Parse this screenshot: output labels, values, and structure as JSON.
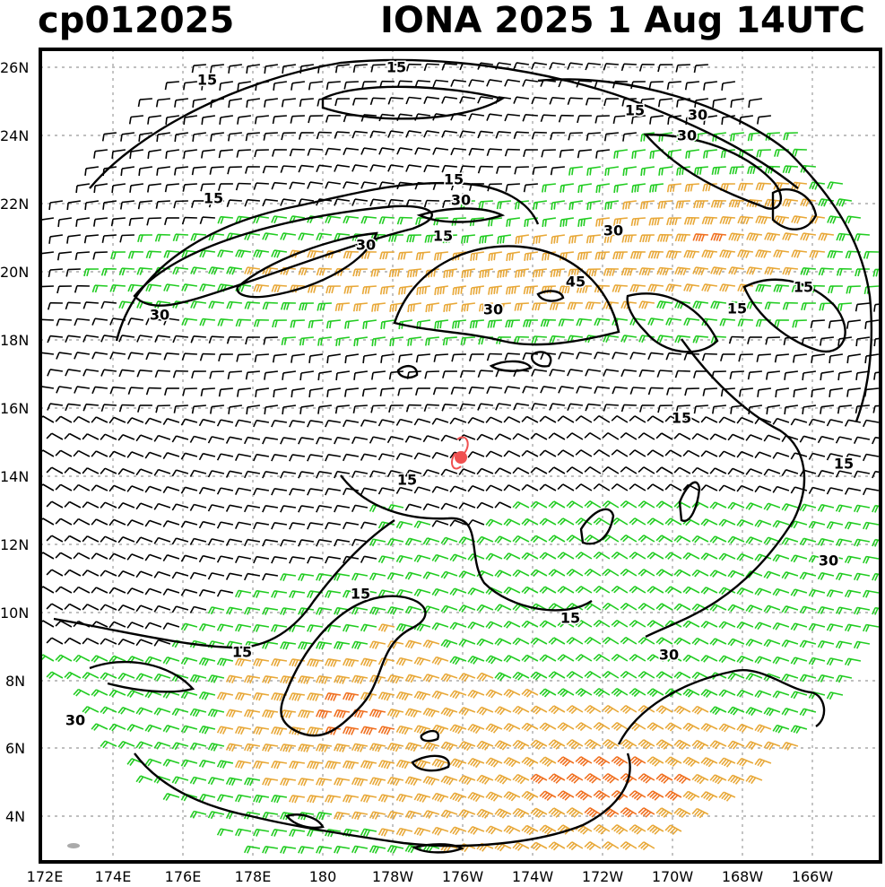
{
  "title": {
    "left": "cp012025",
    "right": "IONA 2025   1 Aug  14UTC"
  },
  "map": {
    "lat_labels": [
      "26N",
      "24N",
      "22N",
      "20N",
      "18N",
      "16N",
      "14N",
      "12N",
      "10N",
      "8N",
      "6N",
      "4N"
    ],
    "lon_labels": [
      "172E",
      "174E",
      "176E",
      "178E",
      "180",
      "178W",
      "176W",
      "174W",
      "172W",
      "170W",
      "168W",
      "166W"
    ],
    "contour_labels": [
      "15",
      "15",
      "15",
      "30",
      "15",
      "15",
      "30",
      "30",
      "15",
      "30",
      "45",
      "30",
      "30",
      "30",
      "15",
      "15",
      "15",
      "15",
      "15",
      "30",
      "15",
      "15",
      "30",
      "15",
      "30"
    ],
    "storm": {
      "name": "IONA",
      "lat": 14.3,
      "lon": "176W"
    },
    "colors": {
      "calm": "#000000",
      "moderate": "#22cc22",
      "strong": "#e8a838",
      "gale": "#f07020",
      "storm_marker": "#f05050"
    }
  }
}
